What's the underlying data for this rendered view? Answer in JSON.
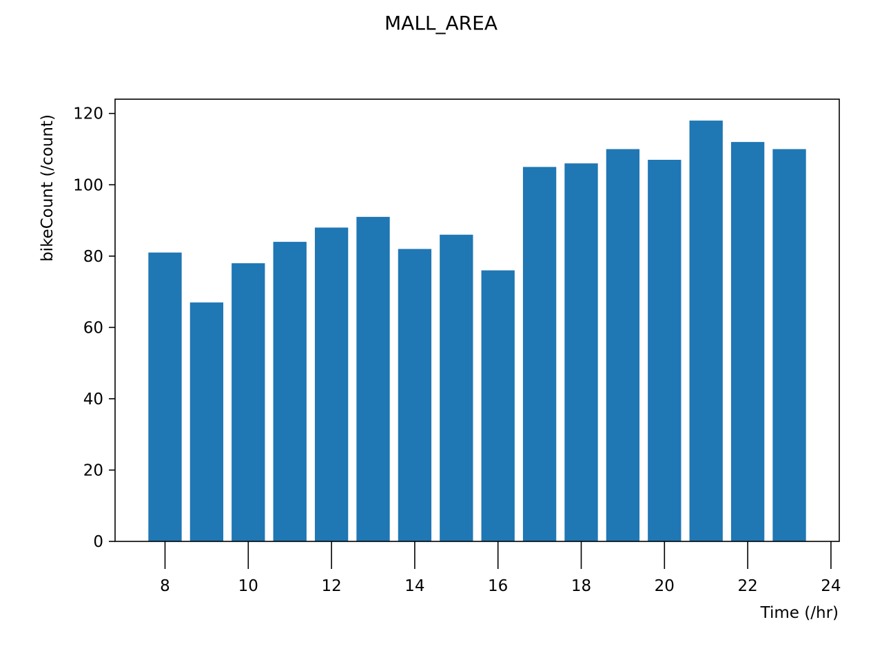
{
  "chart_data": {
    "type": "bar",
    "title": "MALL_AREA",
    "xlabel": "Time (/hr)",
    "ylabel": "bikeCount (/count)",
    "x": [
      8,
      9,
      10,
      11,
      12,
      13,
      14,
      15,
      16,
      17,
      18,
      19,
      20,
      21,
      22,
      23
    ],
    "values": [
      81,
      67,
      78,
      84,
      88,
      91,
      82,
      86,
      76,
      105,
      106,
      110,
      107,
      118,
      112,
      110
    ],
    "bar_width": 0.8,
    "xlim": [
      6.8,
      24.2
    ],
    "ylim": [
      0,
      124
    ],
    "xticks": [
      8,
      10,
      12,
      14,
      16,
      18,
      20,
      22,
      24
    ],
    "yticks": [
      0,
      20,
      40,
      60,
      80,
      100,
      120
    ],
    "bar_color": "#1f77b4",
    "grid": false,
    "legend": "none"
  }
}
